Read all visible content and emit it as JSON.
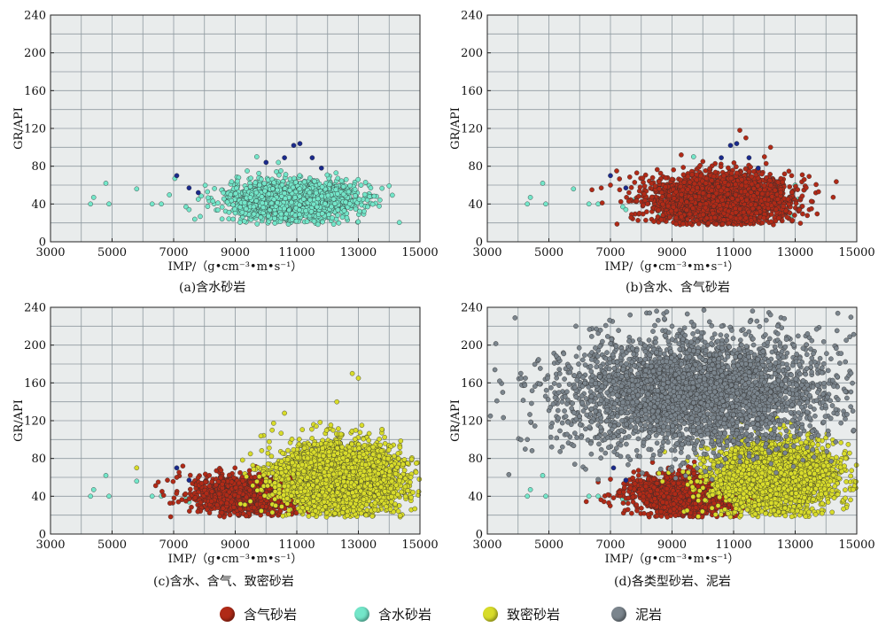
{
  "colors": {
    "gas_sandstone": "#b02a17",
    "water_sandstone": "#73e6c9",
    "tight_sandstone": "#d8dc2a",
    "mudstone": "#7b858d",
    "outlier": "#1a2a8c"
  },
  "legend": {
    "items": [
      {
        "key": "gas_sandstone",
        "label": "含气砂岩",
        "color": "#b02a17"
      },
      {
        "key": "water_sandstone",
        "label": "含水砂岩",
        "color": "#73e6c9"
      },
      {
        "key": "tight_sandstone",
        "label": "致密砂岩",
        "color": "#d8dc2a"
      },
      {
        "key": "mudstone",
        "label": "泥岩",
        "color": "#7b858d"
      }
    ]
  },
  "chart_data": [
    {
      "type": "scatter",
      "caption": "(a)含水砂岩",
      "xlabel": "IMP/（g•cm⁻³•m•s⁻¹）",
      "ylabel": "GR/API",
      "xlim": [
        3000,
        15000
      ],
      "ylim": [
        0,
        240
      ],
      "xticks": [
        3000,
        5000,
        7000,
        9000,
        11000,
        13000,
        15000
      ],
      "yticks": [
        0,
        40,
        80,
        120,
        160,
        200,
        240
      ],
      "grid": true,
      "series": [
        {
          "key": "water_sandstone",
          "clusters": [
            {
              "x_center": 10900,
              "y_center": 45,
              "x_spread": 1000,
              "y_spread": 10,
              "count": 2000
            }
          ],
          "points": [
            [
              4300,
              40
            ],
            [
              4400,
              47
            ],
            [
              4800,
              62
            ],
            [
              4900,
              40
            ],
            [
              5800,
              56
            ],
            [
              6300,
              40
            ],
            [
              6600,
              40
            ],
            [
              7400,
              37
            ],
            [
              7500,
              34
            ],
            [
              7800,
              45
            ],
            [
              8100,
              53
            ],
            [
              9700,
              90
            ],
            [
              10400,
              84
            ],
            [
              13300,
              37
            ],
            [
              13400,
              57
            ]
          ]
        },
        {
          "key": "outlier",
          "clusters": [],
          "points": [
            [
              7100,
              70
            ],
            [
              7500,
              57
            ],
            [
              7800,
              52
            ],
            [
              10000,
              84
            ],
            [
              10600,
              89
            ],
            [
              10900,
              102
            ],
            [
              11100,
              104
            ],
            [
              11500,
              89
            ],
            [
              11800,
              78
            ]
          ]
        }
      ]
    },
    {
      "type": "scatter",
      "caption": "(b)含水、含气砂岩",
      "xlabel": "IMP/（g•cm⁻³•m•s⁻¹）",
      "ylabel": "GR/API",
      "xlim": [
        3000,
        15000
      ],
      "ylim": [
        0,
        240
      ],
      "xticks": [
        3000,
        5000,
        7000,
        9000,
        11000,
        13000,
        15000
      ],
      "yticks": [
        0,
        40,
        80,
        120,
        160,
        200,
        240
      ],
      "grid": true,
      "series": [
        {
          "key": "water_sandstone",
          "clusters": [],
          "points": [
            [
              4300,
              40
            ],
            [
              4400,
              47
            ],
            [
              4800,
              62
            ],
            [
              4900,
              40
            ],
            [
              5800,
              56
            ],
            [
              6300,
              40
            ],
            [
              6600,
              40
            ],
            [
              7400,
              37
            ],
            [
              7500,
              34
            ],
            [
              7800,
              45
            ],
            [
              9700,
              90
            ],
            [
              13200,
              37
            ],
            [
              13300,
              55
            ],
            [
              13000,
              60
            ],
            [
              12900,
              28
            ],
            [
              8600,
              28
            ],
            [
              13100,
              45
            ]
          ]
        },
        {
          "key": "gas_sandstone",
          "clusters": [
            {
              "x_center": 10600,
              "y_center": 45,
              "x_spread": 1100,
              "y_spread": 13,
              "count": 2600
            }
          ],
          "points": [
            [
              6400,
              55
            ],
            [
              6700,
              57
            ],
            [
              7000,
              60
            ],
            [
              7200,
              75
            ],
            [
              7300,
              55
            ],
            [
              7600,
              52
            ],
            [
              9300,
              92
            ],
            [
              10000,
              85
            ],
            [
              11200,
              118
            ],
            [
              11400,
              110
            ],
            [
              12000,
              90
            ],
            [
              12200,
              100
            ]
          ]
        },
        {
          "key": "outlier",
          "clusters": [],
          "points": [
            [
              7000,
              70
            ],
            [
              7500,
              57
            ],
            [
              10600,
              89
            ],
            [
              10900,
              102
            ],
            [
              11100,
              104
            ],
            [
              11500,
              89
            ],
            [
              11800,
              78
            ]
          ]
        }
      ]
    },
    {
      "type": "scatter",
      "caption": "(c)含水、含气、致密砂岩",
      "xlabel": "IMP/（g•cm⁻³•m•s⁻¹）",
      "ylabel": "GR/API",
      "xlim": [
        3000,
        15000
      ],
      "ylim": [
        0,
        240
      ],
      "xticks": [
        3000,
        5000,
        7000,
        9000,
        11000,
        13000,
        15000
      ],
      "yticks": [
        0,
        40,
        80,
        120,
        160,
        200,
        240
      ],
      "grid": true,
      "series": [
        {
          "key": "water_sandstone",
          "clusters": [],
          "points": [
            [
              4300,
              40
            ],
            [
              4400,
              47
            ],
            [
              4800,
              62
            ],
            [
              4900,
              40
            ],
            [
              5800,
              56
            ],
            [
              6300,
              40
            ],
            [
              6600,
              40
            ],
            [
              7400,
              37
            ],
            [
              7500,
              34
            ],
            [
              7800,
              45
            ]
          ]
        },
        {
          "key": "gas_sandstone",
          "clusters": [
            {
              "x_center": 9500,
              "y_center": 42,
              "x_spread": 900,
              "y_spread": 10,
              "count": 1600
            }
          ],
          "points": [
            [
              6500,
              55
            ],
            [
              6800,
              57
            ],
            [
              7100,
              60
            ],
            [
              7300,
              72
            ]
          ]
        },
        {
          "key": "tight_sandstone",
          "clusters": [
            {
              "x_center": 12400,
              "y_center": 60,
              "x_spread": 1000,
              "y_spread": 18,
              "count": 3200
            }
          ],
          "points": [
            [
              5800,
              70
            ],
            [
              10200,
              110
            ],
            [
              10600,
              128
            ],
            [
              12800,
              170
            ],
            [
              13000,
              165
            ],
            [
              14300,
              80
            ],
            [
              14600,
              75
            ],
            [
              14700,
              60
            ],
            [
              12300,
              140
            ]
          ]
        },
        {
          "key": "outlier",
          "clusters": [],
          "points": [
            [
              7100,
              70
            ],
            [
              7500,
              57
            ]
          ]
        }
      ]
    },
    {
      "type": "scatter",
      "caption": "(d)各类型砂岩、泥岩",
      "xlabel": "IMP/（g•cm⁻³•m•s⁻¹）",
      "ylabel": "GR/API",
      "xlim": [
        3000,
        15000
      ],
      "ylim": [
        0,
        240
      ],
      "xticks": [
        3000,
        5000,
        7000,
        9000,
        11000,
        13000,
        15000
      ],
      "yticks": [
        0,
        40,
        80,
        120,
        160,
        200,
        240
      ],
      "grid": true,
      "series": [
        {
          "key": "water_sandstone",
          "clusters": [],
          "points": [
            [
              4300,
              40
            ],
            [
              4400,
              47
            ],
            [
              4800,
              62
            ],
            [
              4900,
              40
            ],
            [
              6300,
              40
            ],
            [
              6600,
              40
            ],
            [
              7400,
              37
            ],
            [
              7500,
              34
            ]
          ]
        },
        {
          "key": "gas_sandstone",
          "clusters": [
            {
              "x_center": 9500,
              "y_center": 42,
              "x_spread": 900,
              "y_spread": 10,
              "count": 1600
            }
          ],
          "points": [
            [
              6600,
              55
            ],
            [
              7000,
              58
            ]
          ]
        },
        {
          "key": "tight_sandstone",
          "clusters": [
            {
              "x_center": 12400,
              "y_center": 62,
              "x_spread": 1000,
              "y_spread": 18,
              "count": 3000
            }
          ],
          "points": [
            [
              14200,
              80
            ],
            [
              14600,
              72
            ]
          ]
        },
        {
          "key": "mudstone",
          "clusters": [
            {
              "x_center": 9800,
              "y_center": 150,
              "x_spread": 2200,
              "y_spread": 30,
              "count": 3400
            }
          ],
          "points": [
            [
              3100,
              125
            ],
            [
              3400,
              162
            ],
            [
              3500,
              150
            ],
            [
              3700,
              63
            ],
            [
              4100,
              165
            ],
            [
              4300,
              100
            ],
            [
              14900,
              110
            ],
            [
              13700,
              178
            ],
            [
              13400,
              212
            ],
            [
              12200,
              232
            ],
            [
              8500,
              236
            ]
          ]
        },
        {
          "key": "outlier",
          "clusters": [],
          "points": [
            [
              7100,
              70
            ],
            [
              7500,
              57
            ]
          ]
        }
      ]
    }
  ]
}
